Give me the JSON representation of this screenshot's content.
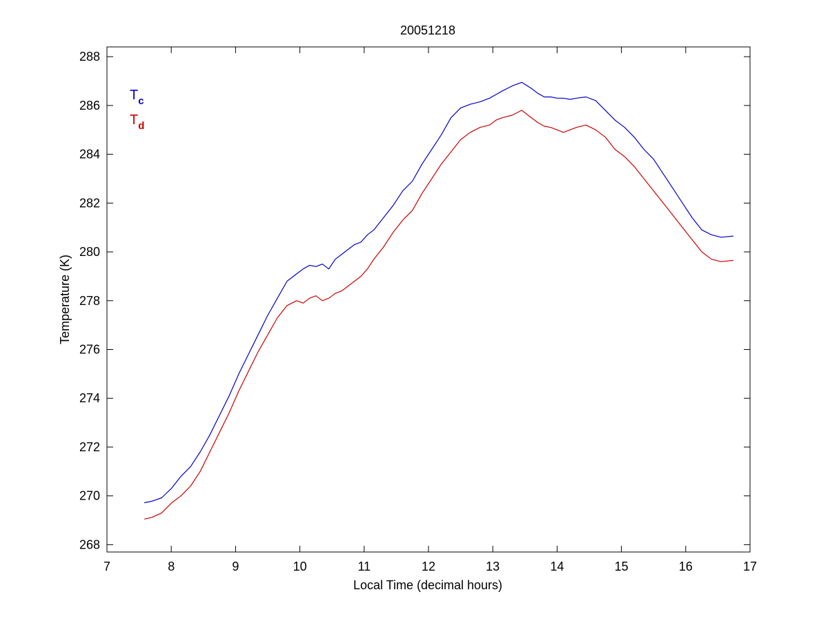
{
  "chart_data": {
    "type": "line",
    "title": "20051218",
    "xlabel": "Local Time (decimal hours)",
    "ylabel": "Temperature (K)",
    "xlim": [
      7,
      17
    ],
    "ylim": [
      267.7,
      288.4
    ],
    "xticks": [
      7,
      8,
      9,
      10,
      11,
      12,
      13,
      14,
      15,
      16,
      17
    ],
    "yticks": [
      268,
      270,
      272,
      274,
      276,
      278,
      280,
      282,
      284,
      286,
      288
    ],
    "grid": false,
    "legend_position": "top-left",
    "series": [
      {
        "name": "T",
        "subscript": "c",
        "color": "#0000cc",
        "x": [
          7.58,
          7.7,
          7.85,
          8.0,
          8.15,
          8.3,
          8.45,
          8.6,
          8.75,
          8.9,
          9.05,
          9.2,
          9.35,
          9.5,
          9.65,
          9.8,
          9.95,
          10.05,
          10.15,
          10.25,
          10.35,
          10.45,
          10.55,
          10.65,
          10.75,
          10.85,
          10.95,
          11.05,
          11.15,
          11.3,
          11.45,
          11.6,
          11.75,
          11.9,
          12.05,
          12.2,
          12.35,
          12.5,
          12.65,
          12.8,
          12.95,
          13.05,
          13.15,
          13.3,
          13.45,
          13.6,
          13.7,
          13.8,
          13.9,
          14.0,
          14.1,
          14.2,
          14.3,
          14.45,
          14.6,
          14.75,
          14.9,
          15.05,
          15.2,
          15.35,
          15.5,
          15.65,
          15.8,
          15.95,
          16.1,
          16.25,
          16.4,
          16.55,
          16.74
        ],
        "values": [
          269.72,
          269.78,
          269.92,
          270.3,
          270.8,
          271.2,
          271.8,
          272.5,
          273.3,
          274.1,
          275.0,
          275.8,
          276.6,
          277.4,
          278.1,
          278.8,
          279.1,
          279.3,
          279.45,
          279.4,
          279.5,
          279.3,
          279.7,
          279.9,
          280.1,
          280.3,
          280.4,
          280.7,
          280.9,
          281.4,
          281.9,
          282.5,
          282.9,
          283.6,
          284.2,
          284.8,
          285.5,
          285.9,
          286.05,
          286.15,
          286.3,
          286.45,
          286.6,
          286.8,
          286.95,
          286.7,
          286.5,
          286.35,
          286.35,
          286.3,
          286.3,
          286.25,
          286.3,
          286.35,
          286.2,
          285.8,
          285.4,
          285.1,
          284.7,
          284.2,
          283.8,
          283.2,
          282.6,
          282.0,
          281.4,
          280.9,
          280.7,
          280.6,
          280.65
        ]
      },
      {
        "name": "T",
        "subscript": "d",
        "color": "#cc0000",
        "x": [
          7.58,
          7.7,
          7.85,
          8.0,
          8.15,
          8.3,
          8.45,
          8.6,
          8.75,
          8.9,
          9.05,
          9.2,
          9.35,
          9.5,
          9.65,
          9.8,
          9.95,
          10.05,
          10.15,
          10.25,
          10.35,
          10.45,
          10.55,
          10.65,
          10.75,
          10.85,
          10.95,
          11.05,
          11.15,
          11.3,
          11.45,
          11.6,
          11.75,
          11.9,
          12.05,
          12.2,
          12.35,
          12.5,
          12.65,
          12.8,
          12.95,
          13.05,
          13.15,
          13.3,
          13.45,
          13.6,
          13.7,
          13.8,
          13.9,
          14.0,
          14.1,
          14.2,
          14.3,
          14.45,
          14.6,
          14.75,
          14.9,
          15.05,
          15.2,
          15.35,
          15.5,
          15.65,
          15.8,
          15.95,
          16.1,
          16.25,
          16.4,
          16.55,
          16.74
        ],
        "values": [
          269.05,
          269.12,
          269.3,
          269.7,
          270.0,
          270.4,
          271.0,
          271.8,
          272.6,
          273.4,
          274.3,
          275.1,
          275.9,
          276.6,
          277.3,
          277.8,
          278.0,
          277.9,
          278.1,
          278.2,
          278.0,
          278.1,
          278.3,
          278.4,
          278.6,
          278.8,
          279.0,
          279.3,
          279.7,
          280.2,
          280.8,
          281.3,
          281.7,
          282.4,
          283.0,
          283.6,
          284.1,
          284.6,
          284.9,
          285.1,
          285.2,
          285.4,
          285.5,
          285.6,
          285.8,
          285.5,
          285.3,
          285.15,
          285.1,
          285.0,
          284.9,
          285.0,
          285.1,
          285.2,
          285.0,
          284.7,
          284.2,
          283.9,
          283.5,
          283.0,
          282.5,
          282.0,
          281.5,
          281.0,
          280.5,
          280.0,
          279.7,
          279.6,
          279.65
        ]
      }
    ]
  }
}
